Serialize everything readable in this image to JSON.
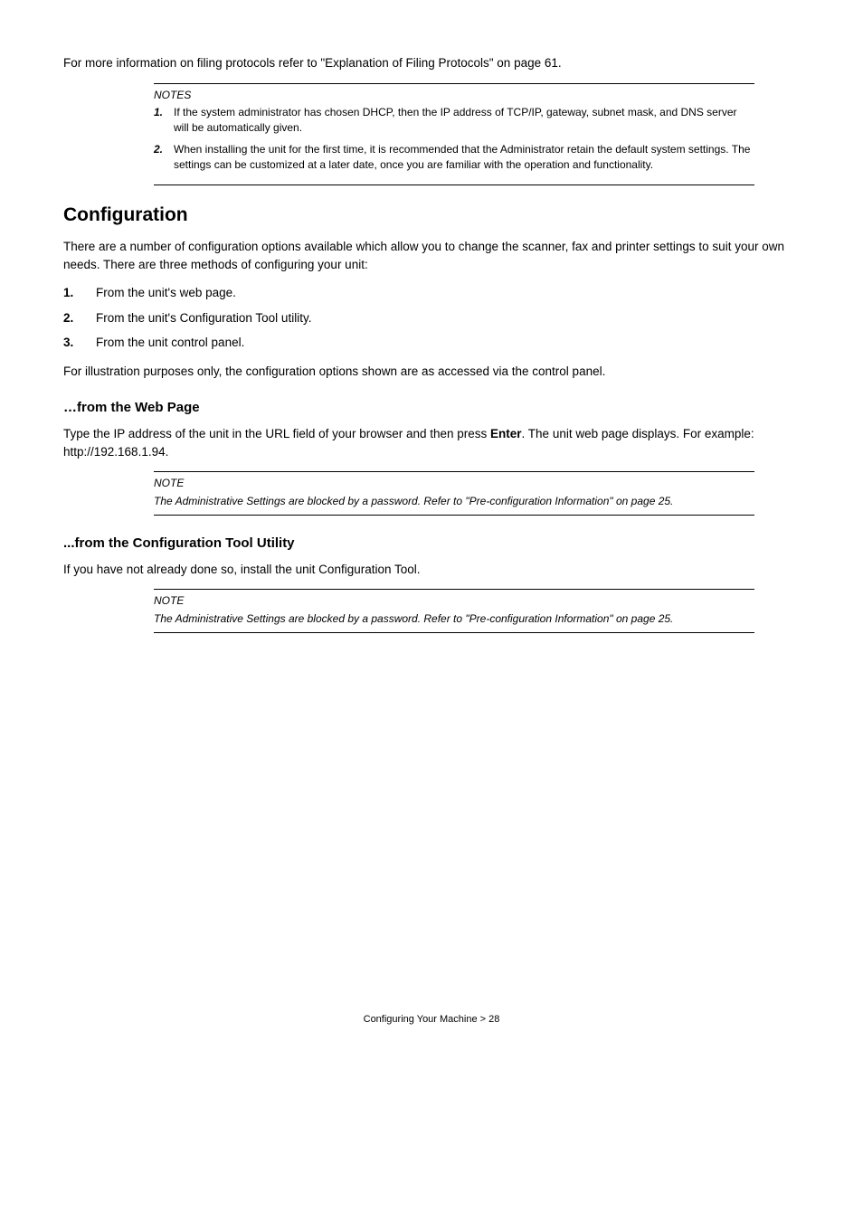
{
  "intro_para": "For more information on filing protocols refer to \"Explanation of Filing Protocols\" on page 61.",
  "notes1": {
    "title": "NOTES",
    "items": [
      {
        "num": "1.",
        "text": "If the system administrator has chosen DHCP, then the IP address of TCP/IP, gateway, subnet mask, and DNS server will be automatically given."
      },
      {
        "num": "2.",
        "text": "When installing the unit for the first time, it is recommended that the Administrator retain the default system settings. The settings can be customized at a later date, once you are familiar with the operation and functionality."
      }
    ]
  },
  "config_heading": "Configuration",
  "config_intro": "There are a number of configuration options available which allow you to change the scanner, fax and printer settings to suit your own needs. There are three methods of configuring your unit:",
  "config_list": [
    {
      "n": "1.",
      "text": "From the unit's web page."
    },
    {
      "n": "2.",
      "text": "From the unit's Configuration Tool utility."
    },
    {
      "n": "3.",
      "text": "From the unit control panel."
    }
  ],
  "config_outro": "For illustration purposes only, the configuration options shown are as accessed via the control panel.",
  "web_heading": "…from the Web Page",
  "web_para_pre": "Type the IP address of the unit in the URL field of your browser and then press ",
  "web_para_bold": "Enter",
  "web_para_post": ". The unit web page displays. For example: http://192.168.1.94.",
  "note2": {
    "title": "NOTE",
    "body": "The Administrative Settings are blocked by a password. Refer to \"Pre-configuration Information\" on page 25."
  },
  "tool_heading": "...from the Configuration Tool Utility",
  "tool_para": "If you have not already done so, install the unit Configuration Tool.",
  "note3": {
    "title": "NOTE",
    "body": "The Administrative Settings are blocked by a password. Refer to \"Pre-configuration Information\" on page 25."
  },
  "footer": "Configuring Your Machine > 28"
}
